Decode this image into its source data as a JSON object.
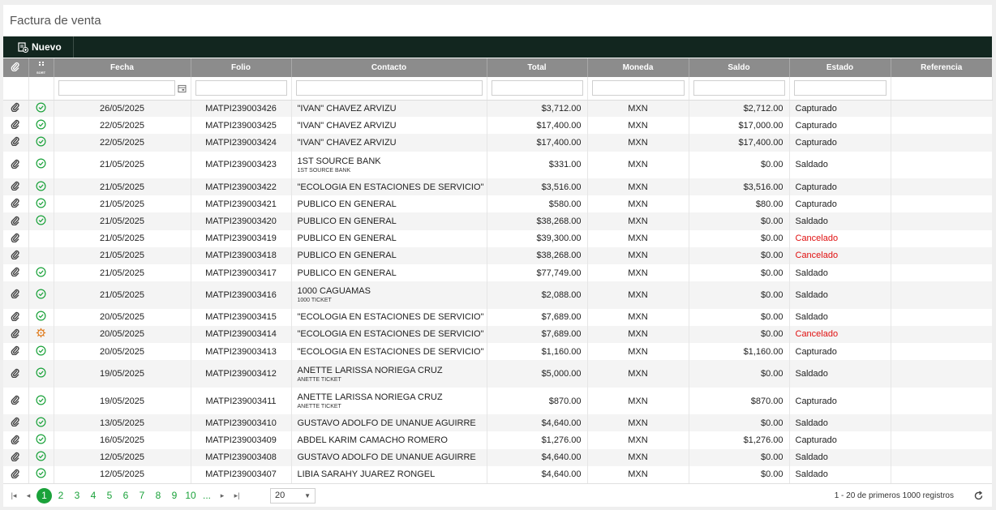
{
  "window": {
    "title": "Factura de venta"
  },
  "toolbar": {
    "nuevo_label": "Nuevo"
  },
  "columns": {
    "fecha": "Fecha",
    "folio": "Folio",
    "contacto": "Contacto",
    "total": "Total",
    "moneda": "Moneda",
    "saldo": "Saldo",
    "estado": "Estado",
    "referencia": "Referencia",
    "sort_icon_label": "SORT"
  },
  "colors": {
    "accent": "#1aa23a",
    "header": "#8c8c8c",
    "toolbar": "#12261f",
    "cancel": "#e01010",
    "warning": "#e07a1a"
  },
  "rows": [
    {
      "status": "ok",
      "fecha": "26/05/2025",
      "folio": "MATPI239003426",
      "contacto": "\"IVAN\" CHAVEZ ARVIZU",
      "sub": "",
      "total": "$3,712.00",
      "moneda": "MXN",
      "saldo": "$2,712.00",
      "estado": "Capturado"
    },
    {
      "status": "ok",
      "fecha": "22/05/2025",
      "folio": "MATPI239003425",
      "contacto": "\"IVAN\" CHAVEZ ARVIZU",
      "sub": "",
      "total": "$17,400.00",
      "moneda": "MXN",
      "saldo": "$17,000.00",
      "estado": "Capturado"
    },
    {
      "status": "ok",
      "fecha": "22/05/2025",
      "folio": "MATPI239003424",
      "contacto": "\"IVAN\" CHAVEZ ARVIZU",
      "sub": "",
      "total": "$17,400.00",
      "moneda": "MXN",
      "saldo": "$17,400.00",
      "estado": "Capturado"
    },
    {
      "status": "ok",
      "fecha": "21/05/2025",
      "folio": "MATPI239003423",
      "contacto": "1ST SOURCE BANK",
      "sub": "1ST SOURCE BANK",
      "total": "$331.00",
      "moneda": "MXN",
      "saldo": "$0.00",
      "estado": "Saldado"
    },
    {
      "status": "ok",
      "fecha": "21/05/2025",
      "folio": "MATPI239003422",
      "contacto": "\"ECOLOGIA EN ESTACIONES DE SERVICIO\"",
      "sub": "",
      "total": "$3,516.00",
      "moneda": "MXN",
      "saldo": "$3,516.00",
      "estado": "Capturado"
    },
    {
      "status": "ok",
      "fecha": "21/05/2025",
      "folio": "MATPI239003421",
      "contacto": "PUBLICO EN GENERAL",
      "sub": "",
      "total": "$580.00",
      "moneda": "MXN",
      "saldo": "$80.00",
      "estado": "Capturado"
    },
    {
      "status": "ok",
      "fecha": "21/05/2025",
      "folio": "MATPI239003420",
      "contacto": "PUBLICO EN GENERAL",
      "sub": "",
      "total": "$38,268.00",
      "moneda": "MXN",
      "saldo": "$0.00",
      "estado": "Saldado"
    },
    {
      "status": "none",
      "fecha": "21/05/2025",
      "folio": "MATPI239003419",
      "contacto": "PUBLICO EN GENERAL",
      "sub": "",
      "total": "$39,300.00",
      "moneda": "MXN",
      "saldo": "$0.00",
      "estado": "Cancelado"
    },
    {
      "status": "none",
      "fecha": "21/05/2025",
      "folio": "MATPI239003418",
      "contacto": "PUBLICO EN GENERAL",
      "sub": "",
      "total": "$38,268.00",
      "moneda": "MXN",
      "saldo": "$0.00",
      "estado": "Cancelado"
    },
    {
      "status": "ok",
      "fecha": "21/05/2025",
      "folio": "MATPI239003417",
      "contacto": "PUBLICO EN GENERAL",
      "sub": "",
      "total": "$77,749.00",
      "moneda": "MXN",
      "saldo": "$0.00",
      "estado": "Saldado"
    },
    {
      "status": "ok",
      "fecha": "21/05/2025",
      "folio": "MATPI239003416",
      "contacto": "1000 CAGUAMAS",
      "sub": "1000 TICKET",
      "total": "$2,088.00",
      "moneda": "MXN",
      "saldo": "$0.00",
      "estado": "Saldado"
    },
    {
      "status": "ok",
      "fecha": "20/05/2025",
      "folio": "MATPI239003415",
      "contacto": "\"ECOLOGIA EN ESTACIONES DE SERVICIO\"",
      "sub": "",
      "total": "$7,689.00",
      "moneda": "MXN",
      "saldo": "$0.00",
      "estado": "Saldado"
    },
    {
      "status": "warn",
      "fecha": "20/05/2025",
      "folio": "MATPI239003414",
      "contacto": "\"ECOLOGIA EN ESTACIONES DE SERVICIO\"",
      "sub": "",
      "total": "$7,689.00",
      "moneda": "MXN",
      "saldo": "$0.00",
      "estado": "Cancelado"
    },
    {
      "status": "ok",
      "fecha": "20/05/2025",
      "folio": "MATPI239003413",
      "contacto": "\"ECOLOGIA EN ESTACIONES DE SERVICIO\"",
      "sub": "",
      "total": "$1,160.00",
      "moneda": "MXN",
      "saldo": "$1,160.00",
      "estado": "Capturado"
    },
    {
      "status": "ok",
      "fecha": "19/05/2025",
      "folio": "MATPI239003412",
      "contacto": "ANETTE LARISSA NORIEGA CRUZ",
      "sub": "ANETTE TICKET",
      "total": "$5,000.00",
      "moneda": "MXN",
      "saldo": "$0.00",
      "estado": "Saldado"
    },
    {
      "status": "ok",
      "fecha": "19/05/2025",
      "folio": "MATPI239003411",
      "contacto": "ANETTE LARISSA NORIEGA CRUZ",
      "sub": "ANETTE TICKET",
      "total": "$870.00",
      "moneda": "MXN",
      "saldo": "$870.00",
      "estado": "Capturado"
    },
    {
      "status": "ok",
      "fecha": "13/05/2025",
      "folio": "MATPI239003410",
      "contacto": "GUSTAVO ADOLFO DE UNANUE AGUIRRE",
      "sub": "",
      "total": "$4,640.00",
      "moneda": "MXN",
      "saldo": "$0.00",
      "estado": "Saldado"
    },
    {
      "status": "ok",
      "fecha": "16/05/2025",
      "folio": "MATPI239003409",
      "contacto": "ABDEL KARIM CAMACHO ROMERO",
      "sub": "",
      "total": "$1,276.00",
      "moneda": "MXN",
      "saldo": "$1,276.00",
      "estado": "Capturado"
    },
    {
      "status": "ok",
      "fecha": "12/05/2025",
      "folio": "MATPI239003408",
      "contacto": "GUSTAVO ADOLFO DE UNANUE AGUIRRE",
      "sub": "",
      "total": "$4,640.00",
      "moneda": "MXN",
      "saldo": "$0.00",
      "estado": "Saldado"
    },
    {
      "status": "ok",
      "fecha": "12/05/2025",
      "folio": "MATPI239003407",
      "contacto": "LIBIA SARAHY JUAREZ RONGEL",
      "sub": "",
      "total": "$4,640.00",
      "moneda": "MXN",
      "saldo": "$0.00",
      "estado": "Saldado"
    }
  ],
  "pager": {
    "pages": [
      "1",
      "2",
      "3",
      "4",
      "5",
      "6",
      "7",
      "8",
      "9",
      "10",
      "..."
    ],
    "current": "1",
    "page_size": "20",
    "info": "1 - 20 de primeros 1000 registros"
  }
}
